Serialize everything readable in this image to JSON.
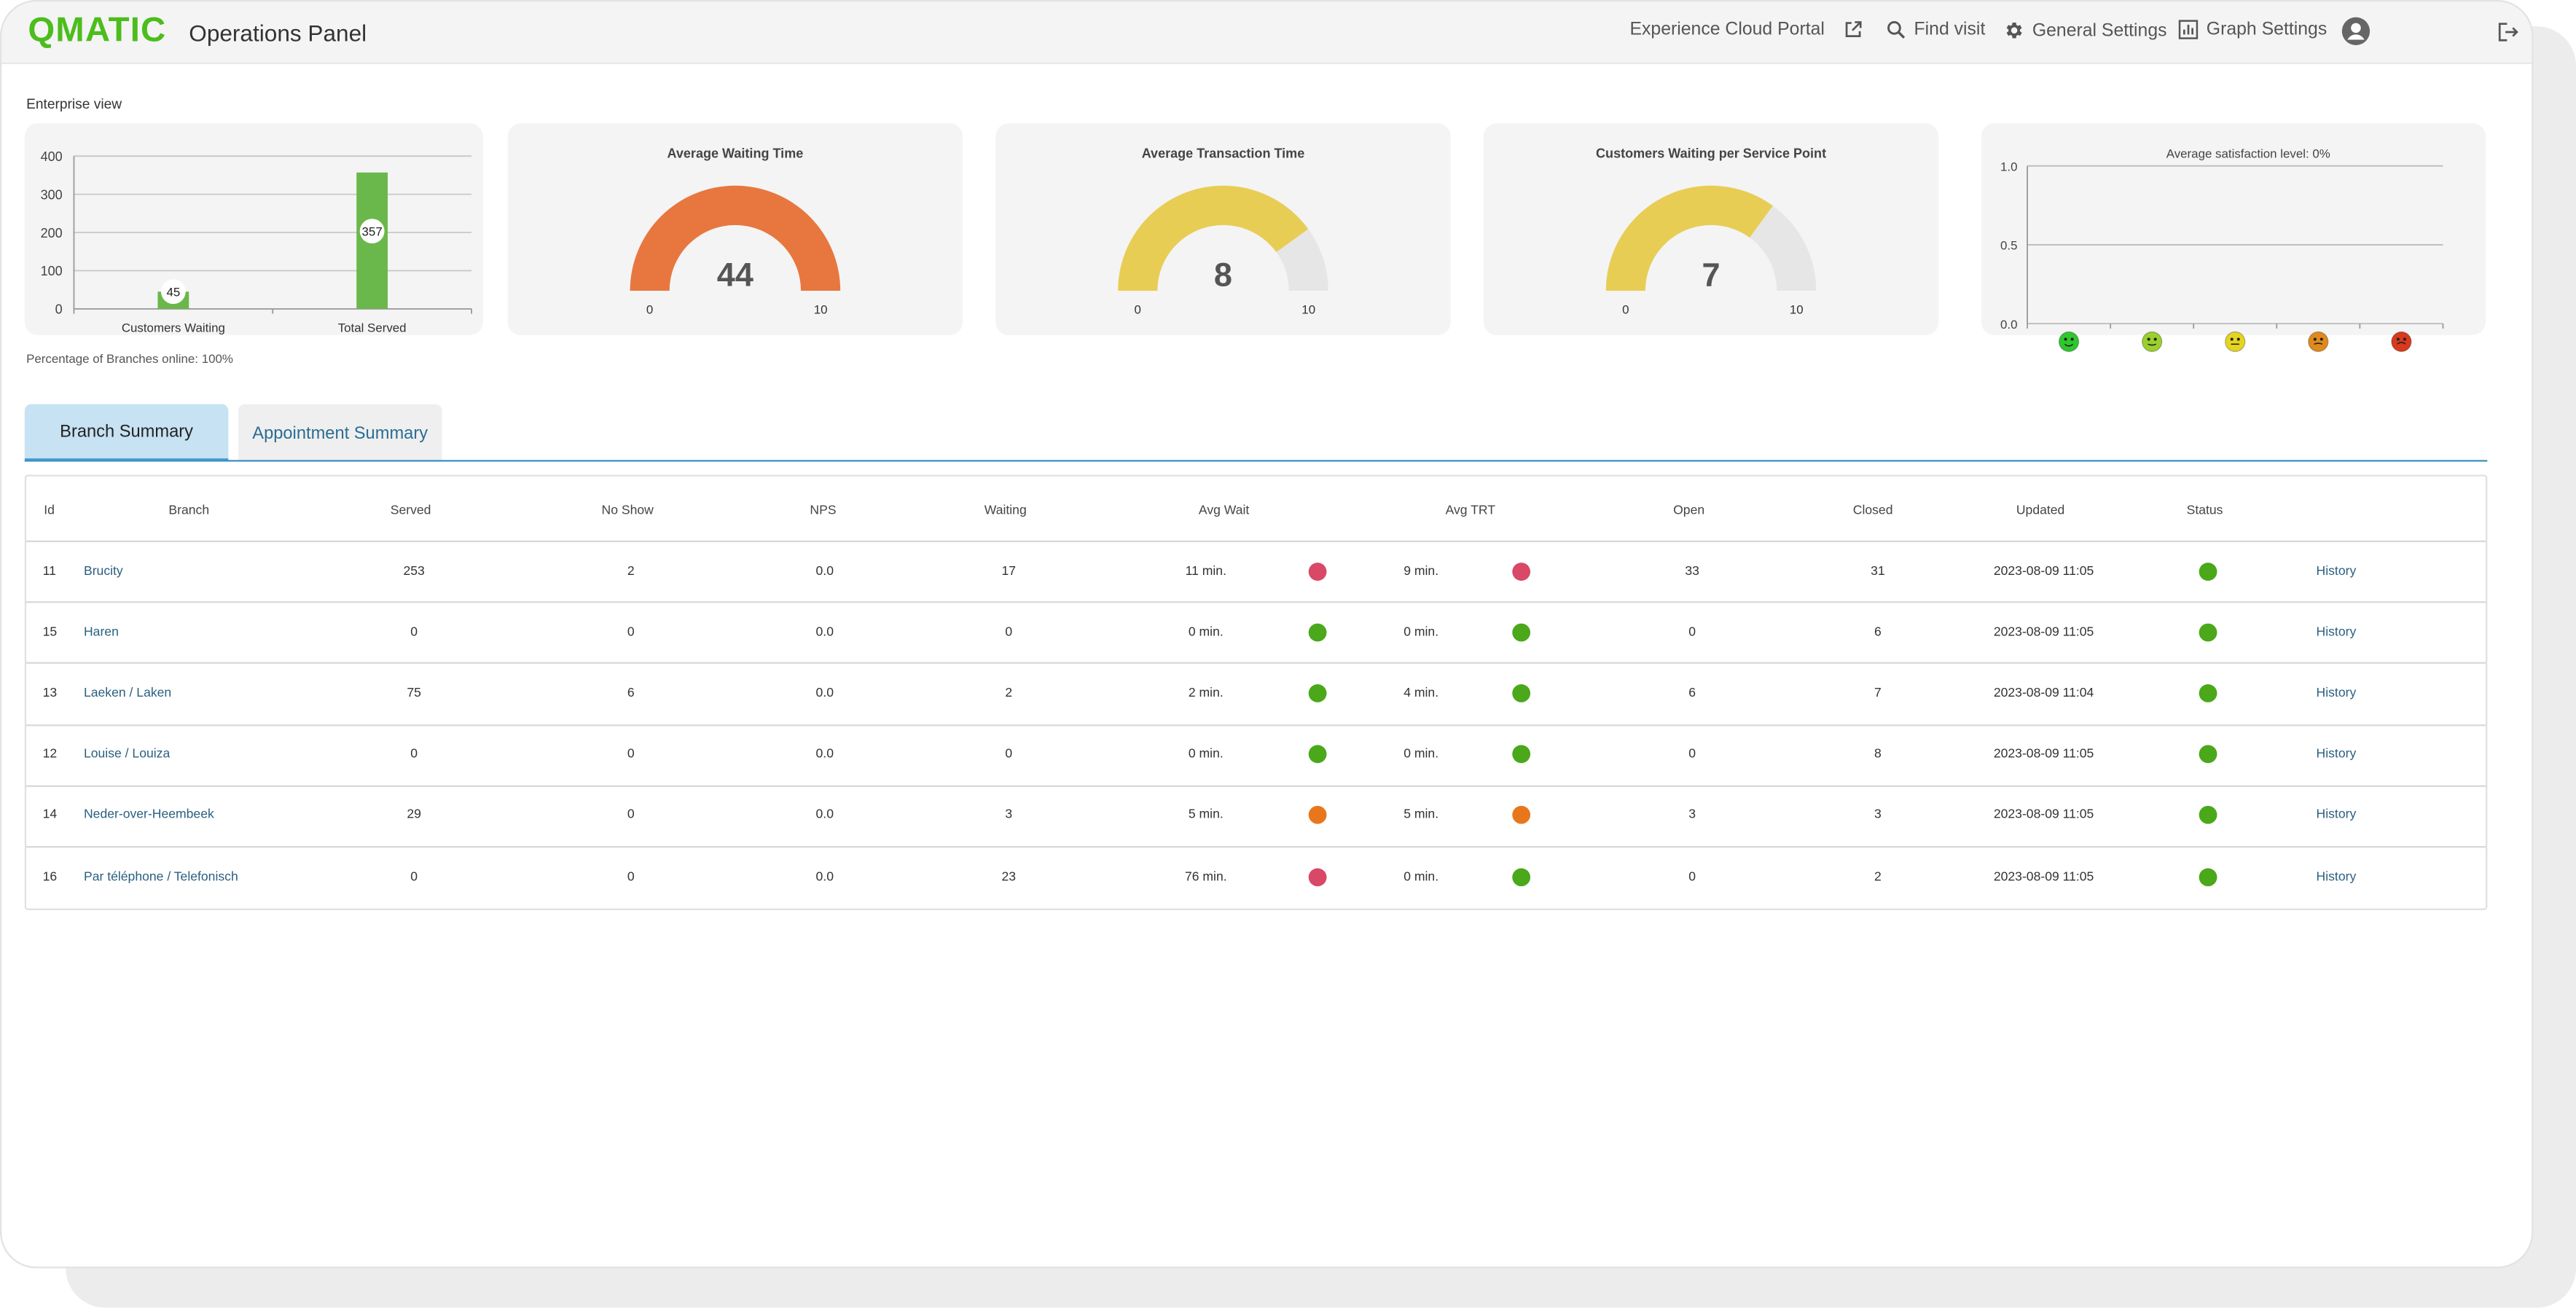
{
  "app": {
    "logo": "QMATIC",
    "title": "Operations Panel"
  },
  "nav": {
    "portal": "Experience Cloud Portal",
    "find_visit": "Find visit",
    "general_settings": "General Settings",
    "graph_settings": "Graph Settings"
  },
  "enterprise_label": "Enterprise view",
  "branches_online": "Percentage of Branches online: 100%",
  "colors": {
    "brand": "#4cbd1c",
    "orange": "#e8773f",
    "yellow": "#e8cd55",
    "bar": "#6ab84b",
    "red": "#d94866",
    "green": "#4aa81a",
    "amber": "#e8771c"
  },
  "bar_chart": {
    "chart_data": {
      "type": "bar",
      "categories": [
        "Customers Waiting",
        "Total Served"
      ],
      "values": [
        45,
        357
      ],
      "ylim": [
        0,
        400
      ],
      "yticks": [
        "0",
        "100",
        "200",
        "300",
        "400"
      ],
      "grid": true
    }
  },
  "gauges": [
    {
      "title": "Average Waiting Time",
      "value": 44,
      "display": "44",
      "min": "0",
      "max": "10",
      "color": "#e8773f",
      "fill": 1.0
    },
    {
      "title": "Average Transaction Time",
      "value": 8,
      "display": "8",
      "min": "0",
      "max": "10",
      "color": "#e8cd55",
      "fill": 0.8
    },
    {
      "title": "Customers Waiting per Service Point",
      "value": 7,
      "display": "7",
      "min": "0",
      "max": "10",
      "color": "#e8cd55",
      "fill": 0.7
    }
  ],
  "satisfaction": {
    "chart_data": {
      "type": "bar",
      "title": "Average satisfaction level: 0%",
      "categories": [
        "very satisfied",
        "satisfied",
        "neutral",
        "dissatisfied",
        "very dissatisfied"
      ],
      "values": [
        0,
        0,
        0,
        0,
        0
      ],
      "ylim": [
        0,
        1
      ],
      "yticks": [
        "0.0",
        "0.5",
        "1.0"
      ],
      "face_colors": [
        "#2ec72e",
        "#9bcf2e",
        "#e5d51f",
        "#e08a1c",
        "#d9391c"
      ]
    }
  },
  "tabs": {
    "branch": "Branch Summary",
    "appointment": "Appointment Summary"
  },
  "table": {
    "headers": [
      "Id",
      "Branch",
      "Served",
      "No Show",
      "NPS",
      "Waiting",
      "Avg Wait",
      "Avg TRT",
      "Open",
      "Closed",
      "Updated",
      "Status"
    ],
    "rows": [
      {
        "id": "11",
        "branch": "Brucity",
        "served": "253",
        "noshow": "2",
        "nps": "0.0",
        "waiting": "17",
        "avgwait": "11 min.",
        "wait_status": "red",
        "avgtrt": "9 min.",
        "trt_status": "red",
        "open": "33",
        "closed": "31",
        "updated": "2023-08-09 11:05",
        "status": "green",
        "history": "History"
      },
      {
        "id": "15",
        "branch": "Haren",
        "served": "0",
        "noshow": "0",
        "nps": "0.0",
        "waiting": "0",
        "avgwait": "0 min.",
        "wait_status": "green",
        "avgtrt": "0 min.",
        "trt_status": "green",
        "open": "0",
        "closed": "6",
        "updated": "2023-08-09 11:05",
        "status": "green",
        "history": "History"
      },
      {
        "id": "13",
        "branch": "Laeken / Laken",
        "served": "75",
        "noshow": "6",
        "nps": "0.0",
        "waiting": "2",
        "avgwait": "2 min.",
        "wait_status": "green",
        "avgtrt": "4 min.",
        "trt_status": "green",
        "open": "6",
        "closed": "7",
        "updated": "2023-08-09 11:04",
        "status": "green",
        "history": "History"
      },
      {
        "id": "12",
        "branch": "Louise / Louiza",
        "served": "0",
        "noshow": "0",
        "nps": "0.0",
        "waiting": "0",
        "avgwait": "0 min.",
        "wait_status": "green",
        "avgtrt": "0 min.",
        "trt_status": "green",
        "open": "0",
        "closed": "8",
        "updated": "2023-08-09 11:05",
        "status": "green",
        "history": "History"
      },
      {
        "id": "14",
        "branch": "Neder-over-Heembeek",
        "served": "29",
        "noshow": "0",
        "nps": "0.0",
        "waiting": "3",
        "avgwait": "5 min.",
        "wait_status": "amber",
        "avgtrt": "5 min.",
        "trt_status": "amber",
        "open": "3",
        "closed": "3",
        "updated": "2023-08-09 11:05",
        "status": "green",
        "history": "History"
      },
      {
        "id": "16",
        "branch": "Par téléphone / Telefonisch",
        "served": "0",
        "noshow": "0",
        "nps": "0.0",
        "waiting": "23",
        "avgwait": "76 min.",
        "wait_status": "red",
        "avgtrt": "0 min.",
        "trt_status": "green",
        "open": "0",
        "closed": "2",
        "updated": "2023-08-09 11:05",
        "status": "green",
        "history": "History"
      }
    ]
  }
}
